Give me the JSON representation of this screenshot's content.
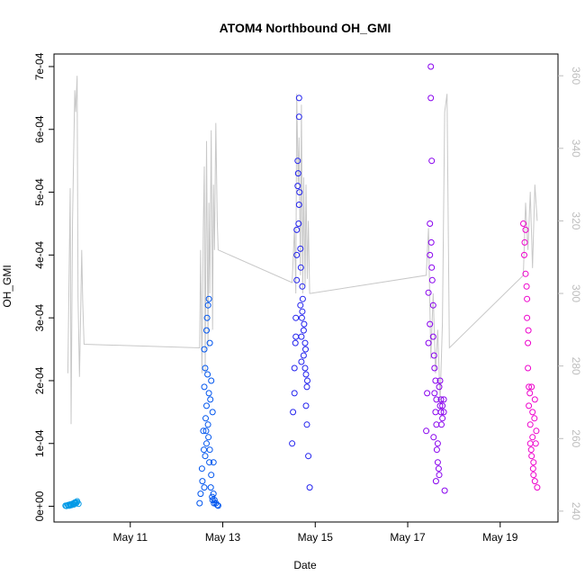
{
  "chart_data": {
    "type": "scatter",
    "title": "ATOM4 Northbound OH_GMI",
    "xlabel": "Date",
    "ylabel": "OH_GMI",
    "x_ticks": [
      {
        "value": 11,
        "label": "May 11"
      },
      {
        "value": 13,
        "label": "May 13"
      },
      {
        "value": 15,
        "label": "May 15"
      },
      {
        "value": 17,
        "label": "May 17"
      },
      {
        "value": 19,
        "label": "May 19"
      }
    ],
    "y_ticks": [
      {
        "value": 0,
        "label": "0e+00"
      },
      {
        "value": 0.0001,
        "label": "1e-04"
      },
      {
        "value": 0.0002,
        "label": "2e-04"
      },
      {
        "value": 0.0003,
        "label": "3e-04"
      },
      {
        "value": 0.0004,
        "label": "4e-04"
      },
      {
        "value": 0.0005,
        "label": "5e-04"
      },
      {
        "value": 0.0006,
        "label": "6e-04"
      },
      {
        "value": 0.0007,
        "label": "7e-04"
      }
    ],
    "y2_ticks": [
      {
        "value": 240,
        "label": "240"
      },
      {
        "value": 260,
        "label": "260"
      },
      {
        "value": 280,
        "label": "280"
      },
      {
        "value": 300,
        "label": "300"
      },
      {
        "value": 320,
        "label": "320"
      },
      {
        "value": 340,
        "label": "340"
      },
      {
        "value": 360,
        "label": "360"
      }
    ],
    "xlim": [
      9.35,
      20.25
    ],
    "ylim": [
      -2.5e-05,
      0.00072
    ],
    "y2lim": [
      237,
      366
    ],
    "grid": false,
    "series": [
      {
        "color": "#0099e6",
        "x": [
          9.6,
          9.62,
          9.65,
          9.68,
          9.7,
          9.73,
          9.75,
          9.78,
          9.8,
          9.82,
          9.85,
          9.88,
          9.66,
          9.72,
          9.79,
          9.84
        ],
        "y": [
          1e-06,
          5e-07,
          2e-06,
          1e-06,
          3e-06,
          2e-06,
          4e-06,
          3e-06,
          6e-06,
          5e-06,
          8e-06,
          4e-06,
          2e-06,
          3e-06,
          5e-06,
          6e-06
        ]
      },
      {
        "color": "#0055ee",
        "x": [
          12.5,
          12.52,
          12.55,
          12.58,
          12.6,
          12.6,
          12.62,
          12.62,
          12.65,
          12.65,
          12.65,
          12.68,
          12.68,
          12.7,
          12.7,
          12.72,
          12.72,
          12.75,
          12.75,
          12.78,
          12.78,
          12.8,
          12.8,
          12.82,
          12.85,
          12.88,
          12.9,
          12.6,
          12.63,
          12.66,
          12.69,
          12.73,
          12.56,
          12.59,
          12.64,
          12.67,
          12.71,
          12.74,
          12.77,
          12.81
        ],
        "y": [
          5e-06,
          2e-05,
          6e-05,
          0.00012,
          0.00019,
          3e-05,
          0.00022,
          8e-05,
          0.00028,
          0.0001,
          0.00016,
          0.00032,
          0.00013,
          0.00033,
          0.00018,
          0.00026,
          9e-05,
          0.0002,
          5e-05,
          0.00015,
          1e-05,
          7e-05,
          2e-05,
          1e-05,
          5e-06,
          2e-06,
          1e-06,
          0.00025,
          0.00014,
          0.0003,
          0.00011,
          0.00017,
          4e-05,
          9e-05,
          0.00012,
          0.00021,
          7e-05,
          3e-05,
          1.5e-05,
          5e-06
        ]
      },
      {
        "color": "#2222ee",
        "x": [
          14.5,
          14.52,
          14.55,
          14.55,
          14.58,
          14.58,
          14.6,
          14.6,
          14.62,
          14.62,
          14.65,
          14.65,
          14.65,
          14.68,
          14.68,
          14.7,
          14.7,
          14.72,
          14.72,
          14.75,
          14.75,
          14.78,
          14.78,
          14.8,
          14.8,
          14.82,
          14.82,
          14.85,
          14.88,
          14.6,
          14.63,
          14.66,
          14.69,
          14.73,
          14.76,
          14.79,
          14.83,
          14.57,
          14.64,
          14.71
        ],
        "y": [
          0.0001,
          0.00015,
          0.00018,
          0.00022,
          0.00027,
          0.0003,
          0.00036,
          0.00044,
          0.00051,
          0.00055,
          0.00062,
          0.00065,
          0.00048,
          0.00041,
          0.00032,
          0.00027,
          0.00023,
          0.00035,
          0.00031,
          0.00028,
          0.00024,
          0.00022,
          0.00026,
          0.00021,
          0.00016,
          0.00019,
          0.00013,
          8e-05,
          3e-05,
          0.0004,
          0.00053,
          0.0005,
          0.00038,
          0.00033,
          0.00029,
          0.00025,
          0.0002,
          0.00026,
          0.00045,
          0.0003
        ]
      },
      {
        "color": "#8800ee",
        "x": [
          17.4,
          17.42,
          17.45,
          17.45,
          17.48,
          17.48,
          17.5,
          17.5,
          17.52,
          17.52,
          17.55,
          17.55,
          17.58,
          17.58,
          17.6,
          17.6,
          17.62,
          17.62,
          17.65,
          17.65,
          17.68,
          17.68,
          17.7,
          17.7,
          17.72,
          17.72,
          17.75,
          17.75,
          17.78,
          17.78,
          17.8,
          17.48,
          17.53,
          17.57,
          17.63,
          17.67,
          17.73,
          17.51,
          17.56,
          17.61
        ],
        "y": [
          0.00012,
          0.00018,
          0.00026,
          0.00034,
          0.0004,
          0.00045,
          0.00065,
          0.0007,
          0.00055,
          0.00038,
          0.00032,
          0.00027,
          0.00022,
          0.00018,
          0.00015,
          0.0002,
          0.00017,
          0.00013,
          0.0001,
          7e-05,
          5e-05,
          0.00019,
          0.00016,
          0.0002,
          0.00017,
          0.00015,
          0.00014,
          0.00016,
          0.00015,
          0.00017,
          2.5e-05,
          0.00029,
          0.00036,
          0.00024,
          9e-05,
          6e-05,
          0.00013,
          0.00042,
          0.00011,
          4e-05
        ]
      },
      {
        "color": "#ee00cc",
        "x": [
          19.5,
          19.52,
          19.55,
          19.55,
          19.58,
          19.58,
          19.6,
          19.6,
          19.62,
          19.62,
          19.65,
          19.65,
          19.68,
          19.68,
          19.7,
          19.7,
          19.72,
          19.72,
          19.75,
          19.75,
          19.78,
          19.8,
          19.53,
          19.57,
          19.61,
          19.64,
          19.67,
          19.71,
          19.74,
          19.77
        ],
        "y": [
          0.00045,
          0.0004,
          0.00044,
          0.00037,
          0.00033,
          0.0003,
          0.00026,
          0.00022,
          0.00019,
          0.00016,
          0.00013,
          0.0001,
          8e-05,
          0.00019,
          0.00015,
          0.00011,
          7e-05,
          5e-05,
          4e-05,
          0.00017,
          0.00012,
          3e-05,
          0.00042,
          0.00035,
          0.00028,
          0.00018,
          9e-05,
          6e-05,
          0.00014,
          0.0001
        ]
      }
    ],
    "line_series": {
      "axis": "right",
      "color": "#c8c8c8",
      "x": [
        9.65,
        9.7,
        9.72,
        9.75,
        9.78,
        9.8,
        9.82,
        9.85,
        9.87,
        9.9,
        9.92,
        9.95,
        9.97,
        10.0,
        12.5,
        12.52,
        12.55,
        12.58,
        12.6,
        12.62,
        12.65,
        12.68,
        12.7,
        12.72,
        12.75,
        12.78,
        12.8,
        12.82,
        12.85,
        12.88,
        12.9,
        14.5,
        14.55,
        14.58,
        14.6,
        14.63,
        14.65,
        14.68,
        14.7,
        14.73,
        14.75,
        14.78,
        14.8,
        14.83,
        14.85,
        14.88,
        14.9,
        17.4,
        17.45,
        17.5,
        17.55,
        17.6,
        17.65,
        17.7,
        17.75,
        17.8,
        17.85,
        17.9,
        19.5,
        19.55,
        19.6,
        19.65,
        19.7,
        19.75,
        19.8
      ],
      "y": [
        278,
        329,
        264,
        320,
        342,
        356,
        350,
        360,
        299,
        277,
        290,
        312,
        298,
        286,
        285,
        312,
        278,
        318,
        335,
        278,
        342,
        285,
        325,
        300,
        345,
        290,
        330,
        312,
        347,
        320,
        312,
        303,
        318,
        300,
        355,
        330,
        343,
        305,
        352,
        300,
        332,
        302,
        330,
        304,
        320,
        300,
        300,
        305,
        318,
        282,
        300,
        278,
        290,
        270,
        292,
        350,
        355,
        285,
        305,
        325,
        312,
        328,
        307,
        330,
        320
      ]
    }
  }
}
